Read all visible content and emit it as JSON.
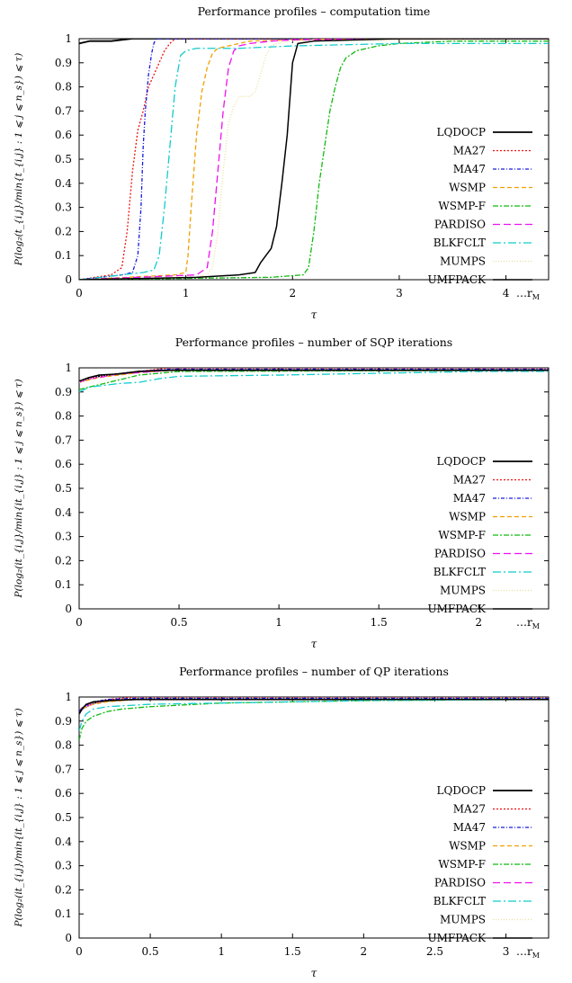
{
  "legend_labels": [
    "LQDOCP",
    "MA27",
    "MA47",
    "WSMP",
    "WSMP-F",
    "PARDISO",
    "BLKFCLT",
    "MUMPS",
    "UMFPACK"
  ],
  "colors": {
    "LQDOCP": "#000000",
    "MA27": "#ee1111",
    "MA47": "#1a1ae0",
    "WSMP": "#f0a000",
    "WSMP-F": "#11bb11",
    "PARDISO": "#ee10ee",
    "BLKFCLT": "#11cccc",
    "MUMPS": "#e8e099",
    "UMFPACK": "#000000"
  },
  "chart_data": [
    {
      "type": "line",
      "title": "Performance profiles – computation time",
      "xlabel": "τ",
      "ylabel": "P(log₂(t_{i,j}/min{t_{i,j} : 1 ⩽ j ⩽ n_s}) ⩽ τ)",
      "xlim": [
        0,
        4.4
      ],
      "ylim": [
        0,
        1
      ],
      "xticks": [
        "0",
        "1",
        "2",
        "3",
        "4"
      ],
      "yticks": [
        "0",
        "0.1",
        "0.2",
        "0.3",
        "0.4",
        "0.5",
        "0.6",
        "0.7",
        "0.8",
        "0.9",
        "1"
      ],
      "x_end_label": "…r_M",
      "legend": "right",
      "series": [
        {
          "name": "LQDOCP",
          "x": [
            0,
            0.1,
            0.3,
            0.5,
            1.0,
            4.4
          ],
          "y": [
            0.98,
            0.99,
            0.99,
            1.0,
            1.0,
            1.0
          ]
        },
        {
          "name": "MA27",
          "x": [
            0,
            0.3,
            0.4,
            0.45,
            0.5,
            0.55,
            0.6,
            0.65,
            0.7,
            0.75,
            0.8,
            0.85,
            0.9,
            1.0,
            4.4
          ],
          "y": [
            0.0,
            0.02,
            0.05,
            0.2,
            0.45,
            0.62,
            0.7,
            0.8,
            0.85,
            0.9,
            0.95,
            0.98,
            1.0,
            1.0,
            1.0
          ]
        },
        {
          "name": "MA47",
          "x": [
            0,
            0.4,
            0.5,
            0.55,
            0.58,
            0.6,
            0.62,
            0.65,
            0.68,
            0.7,
            0.72,
            4.4
          ],
          "y": [
            0.0,
            0.02,
            0.03,
            0.1,
            0.3,
            0.55,
            0.7,
            0.85,
            0.94,
            0.98,
            1.0,
            1.0
          ]
        },
        {
          "name": "WSMP",
          "x": [
            0,
            0.9,
            1.0,
            1.02,
            1.05,
            1.1,
            1.15,
            1.2,
            1.25,
            1.3,
            1.4,
            1.5,
            1.6,
            2.0,
            2.5,
            4.4
          ],
          "y": [
            0.0,
            0.02,
            0.03,
            0.1,
            0.3,
            0.6,
            0.78,
            0.88,
            0.94,
            0.96,
            0.97,
            0.98,
            0.99,
            0.995,
            1.0,
            1.0
          ]
        },
        {
          "name": "WSMP-F",
          "x": [
            0,
            1.8,
            2.1,
            2.15,
            2.2,
            2.25,
            2.3,
            2.35,
            2.4,
            2.45,
            2.5,
            2.6,
            2.8,
            3.0,
            3.5,
            4.4
          ],
          "y": [
            0.0,
            0.01,
            0.02,
            0.05,
            0.2,
            0.4,
            0.55,
            0.7,
            0.8,
            0.88,
            0.92,
            0.95,
            0.97,
            0.98,
            0.99,
            0.99
          ]
        },
        {
          "name": "PARDISO",
          "x": [
            0,
            1.1,
            1.2,
            1.25,
            1.3,
            1.35,
            1.4,
            1.45,
            1.5,
            1.6,
            1.8,
            2.0,
            3.0,
            4.4
          ],
          "y": [
            0.0,
            0.02,
            0.05,
            0.2,
            0.45,
            0.7,
            0.88,
            0.95,
            0.97,
            0.98,
            0.99,
            0.995,
            1.0,
            1.0
          ]
        },
        {
          "name": "BLKFCLT",
          "x": [
            0,
            0.6,
            0.7,
            0.75,
            0.8,
            0.85,
            0.9,
            0.95,
            1.0,
            1.1,
            1.5,
            2.0,
            3.0,
            4.4
          ],
          "y": [
            0.0,
            0.03,
            0.04,
            0.1,
            0.3,
            0.55,
            0.8,
            0.93,
            0.95,
            0.96,
            0.96,
            0.97,
            0.98,
            0.98
          ]
        },
        {
          "name": "MUMPS",
          "x": [
            0,
            1.1,
            1.2,
            1.25,
            1.3,
            1.35,
            1.4,
            1.45,
            1.5,
            1.6,
            1.65,
            1.7,
            1.75,
            1.8,
            1.85,
            2.0,
            4.4
          ],
          "y": [
            0.0,
            0.01,
            0.02,
            0.05,
            0.2,
            0.45,
            0.65,
            0.72,
            0.76,
            0.76,
            0.78,
            0.85,
            0.93,
            0.97,
            0.98,
            0.99,
            1.0
          ]
        },
        {
          "name": "UMFPACK",
          "x": [
            0,
            1.1,
            1.5,
            1.65,
            1.7,
            1.75,
            1.8,
            1.85,
            1.9,
            1.95,
            2.0,
            2.05,
            2.2,
            3.0,
            4.4
          ],
          "y": [
            0.0,
            0.01,
            0.02,
            0.03,
            0.07,
            0.1,
            0.13,
            0.22,
            0.4,
            0.6,
            0.9,
            0.98,
            0.99,
            1.0,
            1.0
          ]
        }
      ]
    },
    {
      "type": "line",
      "title": "Performance profiles – number of SQP iterations",
      "xlabel": "τ",
      "ylabel": "P(log₂(it_{i,j}/min{it_{i,j} : 1 ⩽ j ⩽ n_s}) ⩽ τ)",
      "xlim": [
        0,
        2.35
      ],
      "ylim": [
        0,
        1
      ],
      "xticks": [
        "0",
        "0.5",
        "1",
        "1.5",
        "2"
      ],
      "yticks": [
        "0",
        "0.1",
        "0.2",
        "0.3",
        "0.4",
        "0.5",
        "0.6",
        "0.7",
        "0.8",
        "0.9",
        "1"
      ],
      "x_end_label": "…r_M",
      "legend": "right",
      "series": [
        {
          "name": "LQDOCP",
          "x": [
            0,
            0.05,
            0.1,
            0.2,
            0.3,
            0.45,
            2.35
          ],
          "y": [
            0.94,
            0.955,
            0.965,
            0.975,
            0.985,
            0.99,
            0.99
          ]
        },
        {
          "name": "MA27",
          "x": [
            0,
            0.05,
            0.1,
            0.2,
            0.3,
            0.45,
            2.35
          ],
          "y": [
            0.94,
            0.955,
            0.965,
            0.975,
            0.985,
            1.0,
            1.0
          ]
        },
        {
          "name": "MA47",
          "x": [
            0,
            0.05,
            0.1,
            0.2,
            0.3,
            0.45,
            2.35
          ],
          "y": [
            0.94,
            0.955,
            0.965,
            0.975,
            0.985,
            0.995,
            0.995
          ]
        },
        {
          "name": "WSMP",
          "x": [
            0,
            0.05,
            0.1,
            0.2,
            0.3,
            0.45,
            2.35
          ],
          "y": [
            0.94,
            0.95,
            0.96,
            0.97,
            0.98,
            0.99,
            0.99
          ]
        },
        {
          "name": "WSMP-F",
          "x": [
            0,
            0.05,
            0.1,
            0.2,
            0.3,
            0.5,
            2.35
          ],
          "y": [
            0.91,
            0.92,
            0.93,
            0.95,
            0.97,
            0.985,
            0.99
          ]
        },
        {
          "name": "PARDISO",
          "x": [
            0,
            0.05,
            0.1,
            0.2,
            0.3,
            0.45,
            2.35
          ],
          "y": [
            0.94,
            0.955,
            0.96,
            0.975,
            0.98,
            0.99,
            0.99
          ]
        },
        {
          "name": "BLKFCLT",
          "x": [
            0,
            0.05,
            0.1,
            0.2,
            0.3,
            0.4,
            0.5,
            1.0,
            2.0,
            2.35
          ],
          "y": [
            0.9,
            0.92,
            0.925,
            0.935,
            0.94,
            0.955,
            0.965,
            0.97,
            0.985,
            0.985
          ]
        },
        {
          "name": "MUMPS",
          "x": [
            0,
            0.05,
            0.1,
            0.2,
            0.3,
            0.45,
            2.35
          ],
          "y": [
            0.94,
            0.955,
            0.965,
            0.975,
            0.985,
            0.99,
            0.99
          ]
        },
        {
          "name": "UMFPACK",
          "x": [
            0,
            0.05,
            0.1,
            0.2,
            0.3,
            0.45,
            2.35
          ],
          "y": [
            0.945,
            0.96,
            0.97,
            0.975,
            0.985,
            0.99,
            0.99
          ]
        }
      ]
    },
    {
      "type": "line",
      "title": "Performance profiles – number of QP iterations",
      "xlabel": "τ",
      "ylabel": "P(log₂(it_{i,j}/min{it_{i,j} : 1 ⩽ j ⩽ n_s}) ⩽ τ)",
      "xlim": [
        0,
        3.3
      ],
      "ylim": [
        0,
        1
      ],
      "xticks": [
        "0",
        "0.5",
        "1",
        "1.5",
        "2",
        "2.5",
        "3"
      ],
      "yticks": [
        "0",
        "0.1",
        "0.2",
        "0.3",
        "0.4",
        "0.5",
        "0.6",
        "0.7",
        "0.8",
        "0.9",
        "1"
      ],
      "x_end_label": "…r_M",
      "legend": "right",
      "series": [
        {
          "name": "LQDOCP",
          "x": [
            0,
            0.02,
            0.05,
            0.1,
            0.2,
            0.4,
            3.3
          ],
          "y": [
            0.93,
            0.95,
            0.96,
            0.975,
            0.985,
            0.99,
            0.99
          ]
        },
        {
          "name": "MA27",
          "x": [
            0,
            0.02,
            0.05,
            0.1,
            0.2,
            0.4,
            3.3
          ],
          "y": [
            0.94,
            0.955,
            0.965,
            0.98,
            0.99,
            1.0,
            1.0
          ]
        },
        {
          "name": "MA47",
          "x": [
            0,
            0.02,
            0.05,
            0.1,
            0.2,
            0.4,
            3.3
          ],
          "y": [
            0.94,
            0.955,
            0.965,
            0.98,
            0.99,
            0.995,
            0.995
          ]
        },
        {
          "name": "WSMP",
          "x": [
            0,
            0.02,
            0.05,
            0.1,
            0.2,
            0.4,
            3.3
          ],
          "y": [
            0.93,
            0.95,
            0.96,
            0.97,
            0.98,
            0.99,
            0.99
          ]
        },
        {
          "name": "WSMP-F",
          "x": [
            0,
            0.02,
            0.05,
            0.1,
            0.2,
            0.3,
            0.5,
            1.0,
            2.0,
            3.3
          ],
          "y": [
            0.82,
            0.87,
            0.9,
            0.92,
            0.94,
            0.95,
            0.96,
            0.975,
            0.985,
            0.99
          ]
        },
        {
          "name": "PARDISO",
          "x": [
            0,
            0.02,
            0.05,
            0.1,
            0.2,
            0.4,
            3.3
          ],
          "y": [
            0.93,
            0.95,
            0.96,
            0.975,
            0.985,
            0.99,
            0.99
          ]
        },
        {
          "name": "BLKFCLT",
          "x": [
            0,
            0.02,
            0.05,
            0.1,
            0.2,
            0.5,
            1.0,
            2.0,
            3.3
          ],
          "y": [
            0.86,
            0.9,
            0.93,
            0.95,
            0.96,
            0.97,
            0.975,
            0.985,
            0.99
          ]
        },
        {
          "name": "MUMPS",
          "x": [
            0,
            0.02,
            0.05,
            0.1,
            0.2,
            0.4,
            3.3
          ],
          "y": [
            0.93,
            0.95,
            0.96,
            0.975,
            0.985,
            0.99,
            0.99
          ]
        },
        {
          "name": "UMFPACK",
          "x": [
            0,
            0.02,
            0.05,
            0.1,
            0.2,
            0.4,
            3.3
          ],
          "y": [
            0.93,
            0.95,
            0.97,
            0.98,
            0.985,
            0.99,
            0.99
          ]
        }
      ]
    }
  ]
}
